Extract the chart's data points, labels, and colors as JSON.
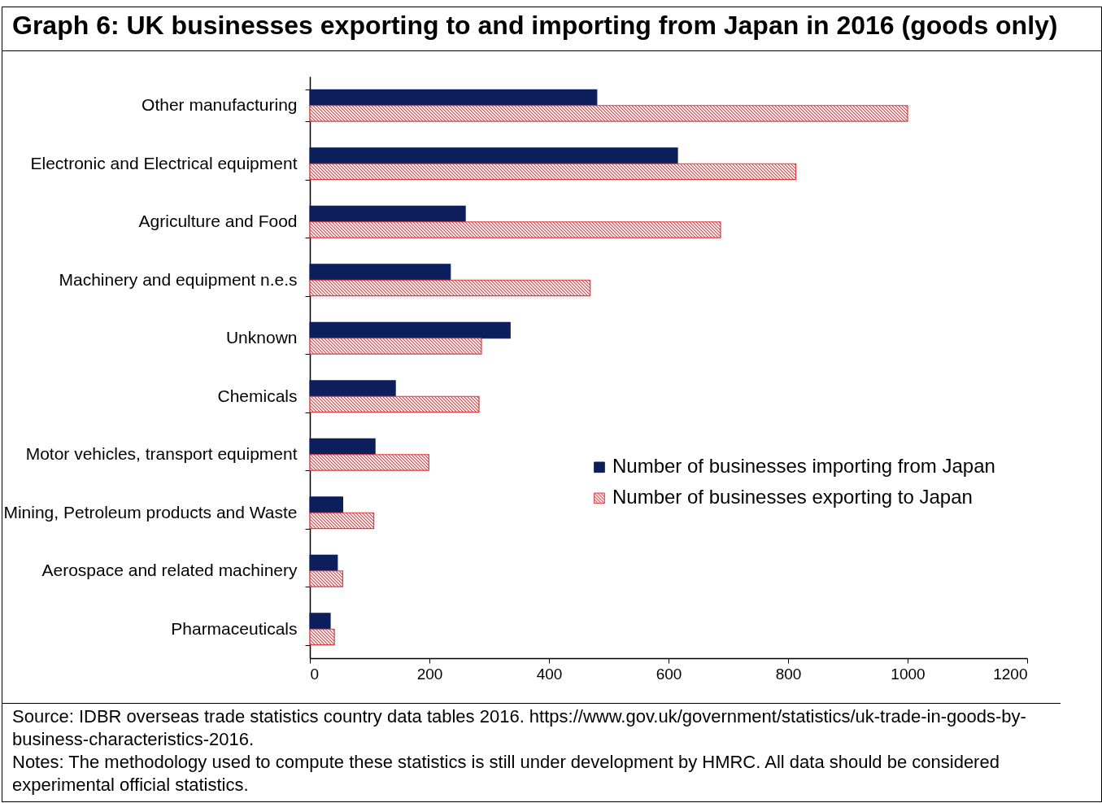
{
  "chart_data": {
    "type": "bar",
    "orientation": "horizontal",
    "title": "Graph 6: UK businesses exporting to and importing from Japan in 2016 (goods only)",
    "categories": [
      "Other manufacturing",
      "Electronic and Electrical equipment",
      "Agriculture and Food",
      "Machinery and equipment n.e.s",
      "Unknown",
      "Chemicals",
      "Motor vehicles, transport equipment",
      "Mining, Petroleum products and Waste",
      "Aerospace and related machinery",
      "Pharmaceuticals"
    ],
    "series": [
      {
        "name": "Number of businesses importing from Japan",
        "color": "#0c1f5c",
        "values": [
          480,
          615,
          260,
          235,
          335,
          143,
          109,
          55,
          46,
          34
        ]
      },
      {
        "name": "Number of businesses exporting to Japan",
        "color": "#e0393e",
        "values": [
          1000,
          813,
          687,
          469,
          287,
          283,
          199,
          107,
          55,
          41
        ]
      }
    ],
    "xlim": [
      0,
      1200
    ],
    "xticks": [
      0,
      200,
      400,
      600,
      800,
      1000,
      1200
    ],
    "grid": false,
    "legend": "right",
    "annotations": [
      "Source: IDBR overseas trade statistics country data tables 2016. https://www.gov.uk/government/statistics/uk-trade-in-goods-by-business-characteristics-2016.",
      "Notes: The methodology used to compute these statistics is still under development by HMRC. All data should be considered experimental official statistics."
    ]
  }
}
